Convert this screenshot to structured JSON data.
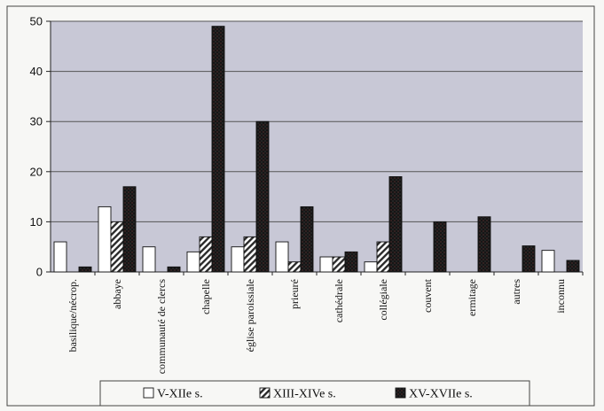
{
  "chart_data": {
    "type": "bar",
    "categories": [
      "basilique/nécrop.",
      "abbaye",
      "communauté de clercs",
      "chapelle",
      "église paroissiale",
      "prieuré",
      "cathédrale",
      "collégiale",
      "couvent",
      "ermitage",
      "autres",
      "inconnu"
    ],
    "series": [
      {
        "name": "V-XIIe s.",
        "values": [
          6,
          13,
          5,
          4,
          5,
          6,
          3,
          2,
          0,
          0,
          0,
          4.3
        ]
      },
      {
        "name": "XIII-XIVe s.",
        "values": [
          0,
          10,
          0,
          7,
          7,
          2,
          3,
          6,
          0,
          0,
          0,
          0
        ]
      },
      {
        "name": "XV-XVIIe s.",
        "values": [
          1,
          17,
          1,
          49,
          30,
          13,
          4,
          19,
          10,
          11,
          5.2,
          2.3
        ]
      }
    ],
    "yticks": [
      0,
      10,
      20,
      30,
      40,
      50
    ],
    "ylim": [
      0,
      50
    ],
    "grid": true,
    "legend": "bottom",
    "colors": {
      "plot_background": "#c8c8d6",
      "gridline": "#555555",
      "series_1_fill": "#ffffff",
      "series_2_pattern": "hatched",
      "series_3_fill": "#1a1a1a"
    }
  }
}
